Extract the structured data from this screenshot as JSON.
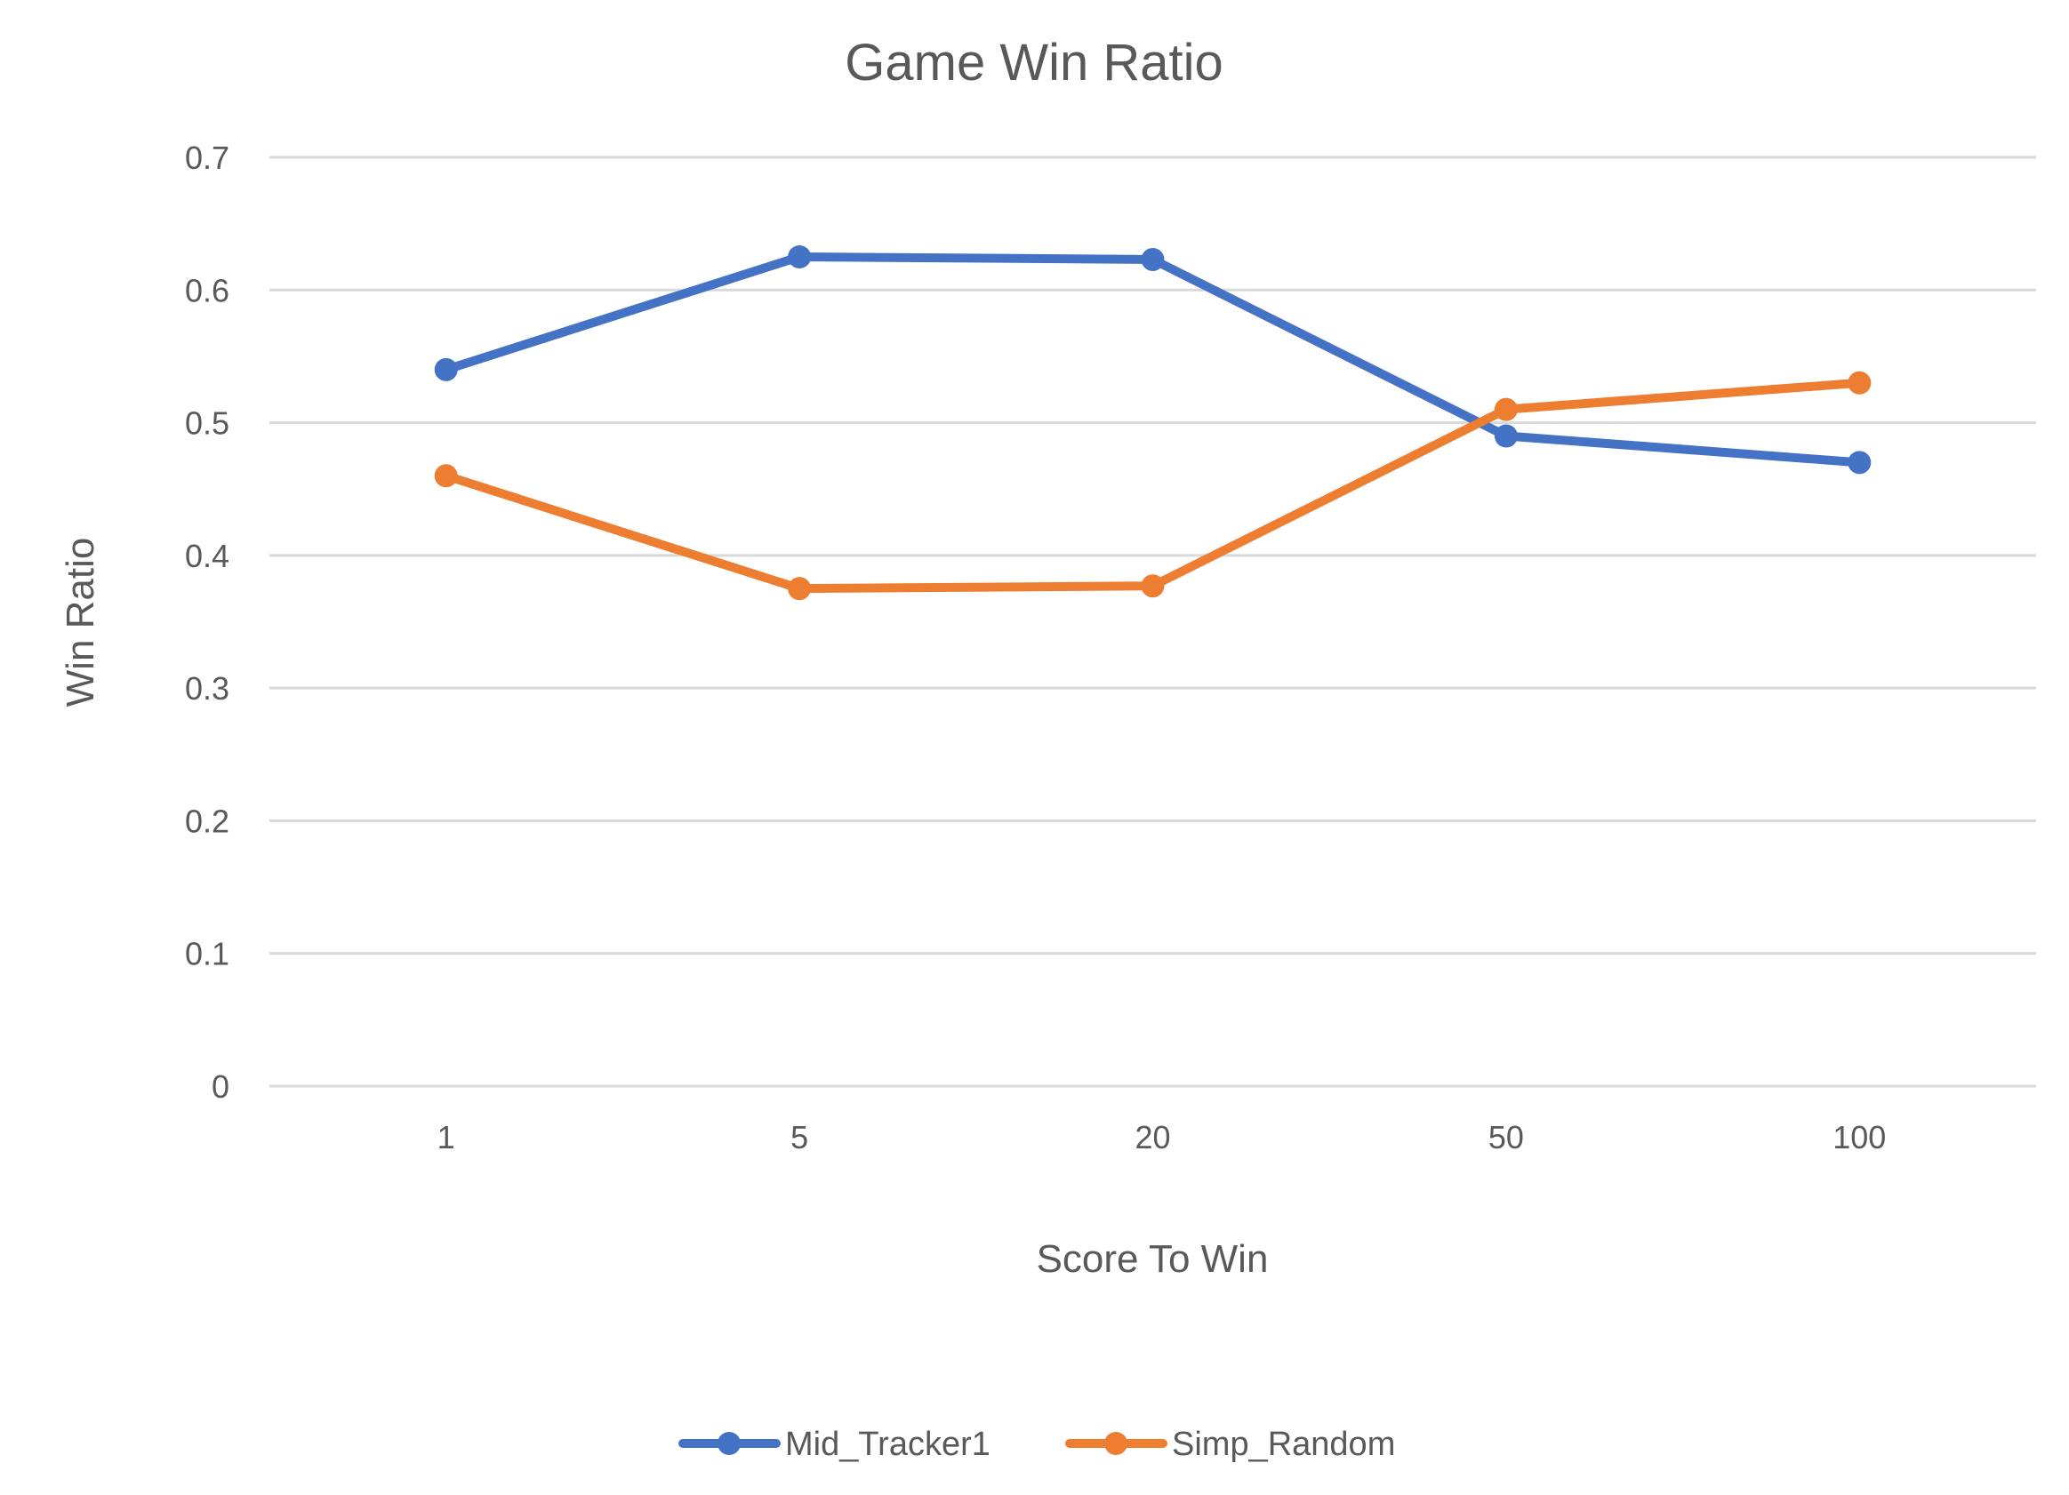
{
  "chart_data": {
    "type": "line",
    "title": "Game Win Ratio",
    "xlabel": "Score To Win",
    "ylabel": "Win Ratio",
    "categories": [
      "1",
      "5",
      "20",
      "50",
      "100"
    ],
    "ylim": [
      0,
      0.7
    ],
    "yticks": [
      0,
      0.1,
      0.2,
      0.3,
      0.4,
      0.5,
      0.6,
      0.7
    ],
    "ytick_labels": [
      "0",
      "0.1",
      "0.2",
      "0.3",
      "0.4",
      "0.5",
      "0.6",
      "0.7"
    ],
    "grid": true,
    "legend_position": "bottom",
    "series": [
      {
        "name": "Mid_Tracker1",
        "color": "#4472c4",
        "values": [
          0.54,
          0.625,
          0.623,
          0.49,
          0.47
        ]
      },
      {
        "name": "Simp_Random",
        "color": "#ed7d31",
        "values": [
          0.46,
          0.375,
          0.377,
          0.51,
          0.53
        ]
      }
    ]
  }
}
